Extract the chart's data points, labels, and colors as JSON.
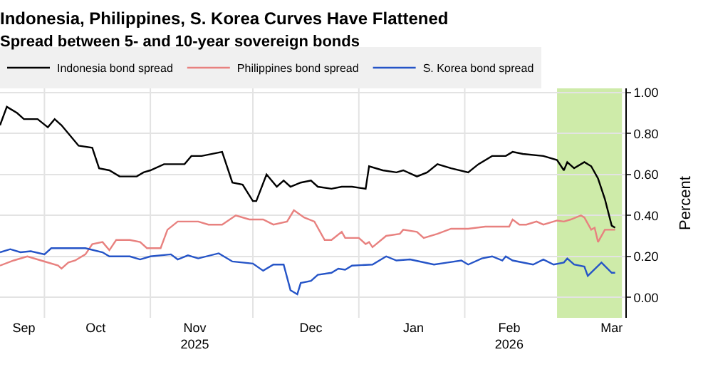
{
  "chart_data": {
    "type": "line",
    "title": "Indonesia, Philippines, S. Korea Curves Have Flattened",
    "subtitle": "Spread between 5- and 10-year sovereign bonds",
    "ylabel": "Percent",
    "xlim": [
      "2025-09-18",
      "2026-03-20"
    ],
    "xticks": [
      {
        "value": "2025-10-01",
        "label": null
      },
      {
        "value": "2025-11-01",
        "label": null
      },
      {
        "value": "2025-12-01",
        "label": null
      },
      {
        "value": "2026-01-01",
        "label": null
      },
      {
        "value": "2026-02-01",
        "label": null
      },
      {
        "value": "2025-09-25",
        "label": "Sep"
      },
      {
        "value": "2025-10-16",
        "label": "Oct"
      },
      {
        "value": "2025-11-14",
        "label": "Nov\n2025"
      },
      {
        "value": "2025-12-18",
        "label": "Dec"
      },
      {
        "value": "2026-01-17",
        "label": "Jan"
      },
      {
        "value": "2026-02-14",
        "label": "Feb\n2026"
      },
      {
        "value": "2026-03-16",
        "label": "Mar"
      }
    ],
    "ylim": [
      -0.1,
      1.02
    ],
    "yticks": [
      {
        "value": 0,
        "label": "0.00"
      },
      {
        "value": 0.2,
        "label": "0.20"
      },
      {
        "value": 0.4,
        "label": "0.40"
      },
      {
        "value": 0.6,
        "label": "0.60"
      },
      {
        "value": 0.8,
        "label": "0.80"
      },
      {
        "value": 1,
        "label": "1.00"
      }
    ],
    "grid": true,
    "legend": "top left",
    "bands": [
      {
        "axis": "x",
        "from": "2026-02-28",
        "to": "2026-03-19",
        "color": "#c6e89a"
      }
    ],
    "series": [
      {
        "name": "Indonesia bond spread",
        "color": "#000000",
        "x": [
          "2025-09-18",
          "2025-09-20",
          "2025-09-23",
          "2025-09-25",
          "2025-09-29",
          "2025-10-02",
          "2025-10-04",
          "2025-10-06",
          "2025-10-11",
          "2025-10-15",
          "2025-10-17",
          "2025-10-20",
          "2025-10-23",
          "2025-10-28",
          "2025-10-30",
          "2025-11-01",
          "2025-11-05",
          "2025-11-11",
          "2025-11-13",
          "2025-11-16",
          "2025-11-22",
          "2025-11-25",
          "2025-11-28",
          "2025-12-01",
          "2025-12-02",
          "2025-12-05",
          "2025-12-08",
          "2025-12-10",
          "2025-12-12",
          "2025-12-15",
          "2025-12-18",
          "2025-12-20",
          "2025-12-24",
          "2025-12-27",
          "2025-12-30",
          "2026-01-03",
          "2026-01-04",
          "2026-01-08",
          "2026-01-12",
          "2026-01-14",
          "2026-01-18",
          "2026-01-21",
          "2026-01-24",
          "2026-01-28",
          "2026-02-02",
          "2026-02-05",
          "2026-02-09",
          "2026-02-13",
          "2026-02-15",
          "2026-02-18",
          "2026-02-24",
          "2026-02-28",
          "2026-03-02",
          "2026-03-03",
          "2026-03-05",
          "2026-03-08",
          "2026-03-10",
          "2026-03-12",
          "2026-03-14",
          "2026-03-16",
          "2026-03-17"
        ],
        "values": [
          0.84,
          0.93,
          0.9,
          0.87,
          0.87,
          0.83,
          0.87,
          0.84,
          0.74,
          0.73,
          0.63,
          0.62,
          0.59,
          0.59,
          0.61,
          0.62,
          0.65,
          0.65,
          0.69,
          0.69,
          0.71,
          0.56,
          0.55,
          0.47,
          0.47,
          0.6,
          0.54,
          0.57,
          0.54,
          0.56,
          0.57,
          0.54,
          0.53,
          0.54,
          0.54,
          0.53,
          0.64,
          0.62,
          0.61,
          0.62,
          0.59,
          0.61,
          0.65,
          0.63,
          0.61,
          0.65,
          0.69,
          0.69,
          0.71,
          0.7,
          0.69,
          0.67,
          0.62,
          0.66,
          0.63,
          0.66,
          0.64,
          0.58,
          0.48,
          0.35,
          0.34
        ]
      },
      {
        "name": "Philippines bond spread",
        "color": "#e8817f",
        "x": [
          "2025-09-18",
          "2025-09-22",
          "2025-09-26",
          "2025-09-30",
          "2025-10-05",
          "2025-10-06",
          "2025-10-08",
          "2025-10-10",
          "2025-10-13",
          "2025-10-15",
          "2025-10-18",
          "2025-10-20",
          "2025-10-22",
          "2025-10-26",
          "2025-10-29",
          "2025-10-31",
          "2025-11-04",
          "2025-11-06",
          "2025-11-09",
          "2025-11-15",
          "2025-11-18",
          "2025-11-22",
          "2025-11-26",
          "2025-11-30",
          "2025-12-04",
          "2025-12-07",
          "2025-12-11",
          "2025-12-13",
          "2025-12-16",
          "2025-12-19",
          "2025-12-22",
          "2025-12-24",
          "2025-12-27",
          "2025-12-28",
          "2026-01-01",
          "2026-01-03",
          "2026-01-04",
          "2026-01-05",
          "2026-01-09",
          "2026-01-13",
          "2026-01-14",
          "2026-01-18",
          "2026-01-20",
          "2026-01-24",
          "2026-01-28",
          "2026-02-02",
          "2026-02-07",
          "2026-02-14",
          "2026-02-15",
          "2026-02-17",
          "2026-02-19",
          "2026-02-22",
          "2026-02-24",
          "2026-02-28",
          "2026-03-02",
          "2026-03-04",
          "2026-03-07",
          "2026-03-08",
          "2026-03-10",
          "2026-03-11",
          "2026-03-12",
          "2026-03-14",
          "2026-03-17"
        ],
        "values": [
          0.155,
          0.18,
          0.2,
          0.18,
          0.155,
          0.14,
          0.17,
          0.18,
          0.21,
          0.26,
          0.27,
          0.23,
          0.28,
          0.28,
          0.27,
          0.24,
          0.24,
          0.33,
          0.37,
          0.37,
          0.355,
          0.355,
          0.4,
          0.38,
          0.38,
          0.355,
          0.37,
          0.425,
          0.39,
          0.37,
          0.28,
          0.28,
          0.32,
          0.29,
          0.29,
          0.26,
          0.27,
          0.245,
          0.3,
          0.31,
          0.33,
          0.32,
          0.29,
          0.31,
          0.335,
          0.335,
          0.345,
          0.345,
          0.38,
          0.355,
          0.355,
          0.37,
          0.355,
          0.375,
          0.37,
          0.38,
          0.4,
          0.39,
          0.33,
          0.34,
          0.27,
          0.33,
          0.33
        ]
      },
      {
        "name": "S. Korea bond spread",
        "color": "#2554c7",
        "x": [
          "2025-09-18",
          "2025-09-21",
          "2025-09-24",
          "2025-09-27",
          "2025-10-01",
          "2025-10-03",
          "2025-10-13",
          "2025-10-18",
          "2025-10-20",
          "2025-10-26",
          "2025-10-29",
          "2025-11-01",
          "2025-11-07",
          "2025-11-09",
          "2025-11-12",
          "2025-11-15",
          "2025-11-21",
          "2025-11-25",
          "2025-12-01",
          "2025-12-04",
          "2025-12-07",
          "2025-12-10",
          "2025-12-12",
          "2025-12-14",
          "2025-12-15",
          "2025-12-18",
          "2025-12-20",
          "2025-12-24",
          "2025-12-26",
          "2025-12-28",
          "2025-12-30",
          "2026-01-05",
          "2026-01-09",
          "2026-01-12",
          "2026-01-16",
          "2026-01-23",
          "2026-01-27",
          "2026-01-31",
          "2026-02-02",
          "2026-02-06",
          "2026-02-09",
          "2026-02-12",
          "2026-02-13",
          "2026-02-15",
          "2026-02-21",
          "2026-02-24",
          "2026-02-27",
          "2026-03-02",
          "2026-03-03",
          "2026-03-05",
          "2026-03-08",
          "2026-03-09",
          "2026-03-13",
          "2026-03-16",
          "2026-03-17"
        ],
        "values": [
          0.22,
          0.235,
          0.22,
          0.225,
          0.21,
          0.24,
          0.24,
          0.22,
          0.2,
          0.2,
          0.185,
          0.2,
          0.21,
          0.185,
          0.205,
          0.19,
          0.215,
          0.175,
          0.165,
          0.13,
          0.16,
          0.16,
          0.035,
          0.015,
          0.07,
          0.08,
          0.11,
          0.12,
          0.14,
          0.135,
          0.155,
          0.16,
          0.2,
          0.18,
          0.185,
          0.16,
          0.17,
          0.18,
          0.16,
          0.19,
          0.2,
          0.18,
          0.2,
          0.18,
          0.16,
          0.185,
          0.16,
          0.17,
          0.19,
          0.16,
          0.15,
          0.105,
          0.17,
          0.12,
          0.12
        ]
      }
    ]
  }
}
